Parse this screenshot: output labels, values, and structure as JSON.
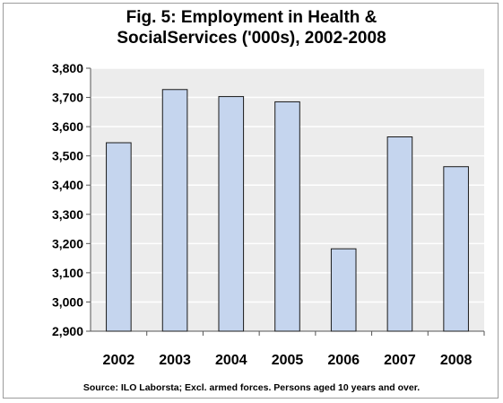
{
  "chart_data": {
    "type": "bar",
    "title_line1": "Fig. 5: Employment in Health &",
    "title_line2": "SocialServices ('000s), 2002-2008",
    "categories": [
      "2002",
      "2003",
      "2004",
      "2005",
      "2006",
      "2007",
      "2008"
    ],
    "values": [
      3545,
      3727,
      3703,
      3685,
      3182,
      3565,
      3463
    ],
    "ylim": [
      2900,
      3800
    ],
    "yticks": [
      2900,
      3000,
      3100,
      3200,
      3300,
      3400,
      3500,
      3600,
      3700,
      3800
    ],
    "ytick_labels": [
      "2,900",
      "3,000",
      "3,100",
      "3,200",
      "3,300",
      "3,400",
      "3,500",
      "3,600",
      "3,700",
      "3,800"
    ],
    "grid": true,
    "colors": {
      "bar_fill": "#c5d5ee",
      "bar_stroke": "#1a1a1a",
      "plot_bg": "#ececec",
      "gridline": "#ffffff"
    }
  },
  "source": "Source: ILO Laborsta; Excl. armed forces. Persons aged 10 years and over."
}
